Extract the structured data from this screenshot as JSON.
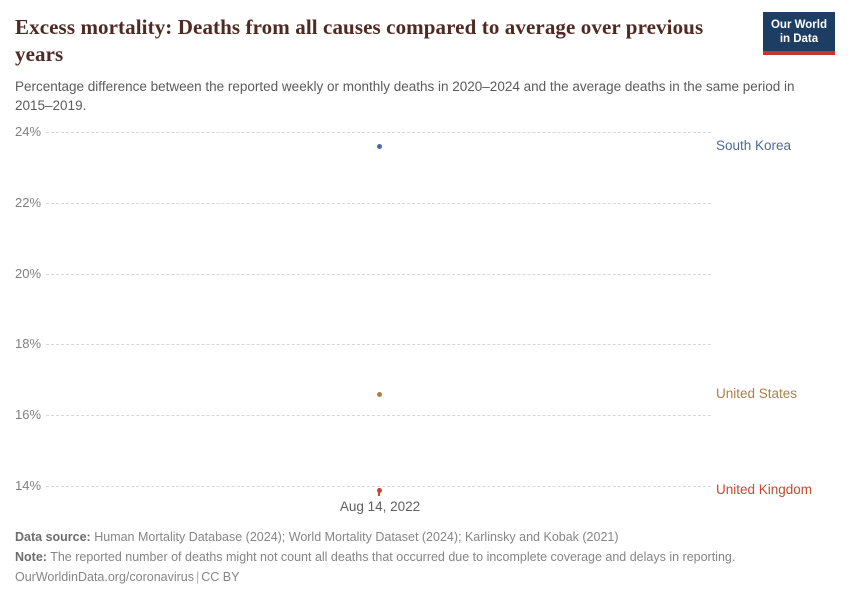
{
  "header": {
    "title": "Excess mortality: Deaths from all causes compared to average over previous years",
    "subtitle": "Percentage difference between the reported weekly or monthly deaths in 2020–2024 and the average deaths in the same period in 2015–2019.",
    "logo": {
      "line1": "Our World",
      "line2": "in Data"
    }
  },
  "chart_data": {
    "type": "scatter",
    "title": "Excess mortality: Deaths from all causes compared to average over previous years",
    "x": [
      "Aug 14, 2022"
    ],
    "x_axis_label": "Aug 14, 2022",
    "series": [
      {
        "name": "South Korea",
        "values": [
          23.6
        ],
        "color": "#4C6A9C"
      },
      {
        "name": "United States",
        "values": [
          16.6
        ],
        "color": "#AD8048"
      },
      {
        "name": "United Kingdom",
        "values": [
          13.9
        ],
        "color": "#C44A31"
      }
    ],
    "ylim": [
      13.5,
      24.3
    ],
    "y_ticks": [
      24,
      22,
      20,
      18,
      16,
      14
    ],
    "y_tick_suffix": "%",
    "grid": "horizontal-dashed",
    "legend": "entity-labels-right"
  },
  "footer": {
    "datasource_label": "Data source:",
    "datasource_text": "Human Mortality Database (2024); World Mortality Dataset (2024); Karlinsky and Kobak (2021)",
    "note_label": "Note:",
    "note_text": "The reported number of deaths might not count all deaths that occurred due to incomplete coverage and delays in reporting.",
    "url": "OurWorldinData.org/coronavirus",
    "separator": "|",
    "license": "CC BY"
  },
  "colors": {
    "title": "#4F2A23",
    "subtitle": "#5b5b5b",
    "axis_text": "#808080",
    "gridline": "#d8d8d8",
    "logo_bg": "#1d3d63",
    "logo_bar": "#C0392B"
  }
}
